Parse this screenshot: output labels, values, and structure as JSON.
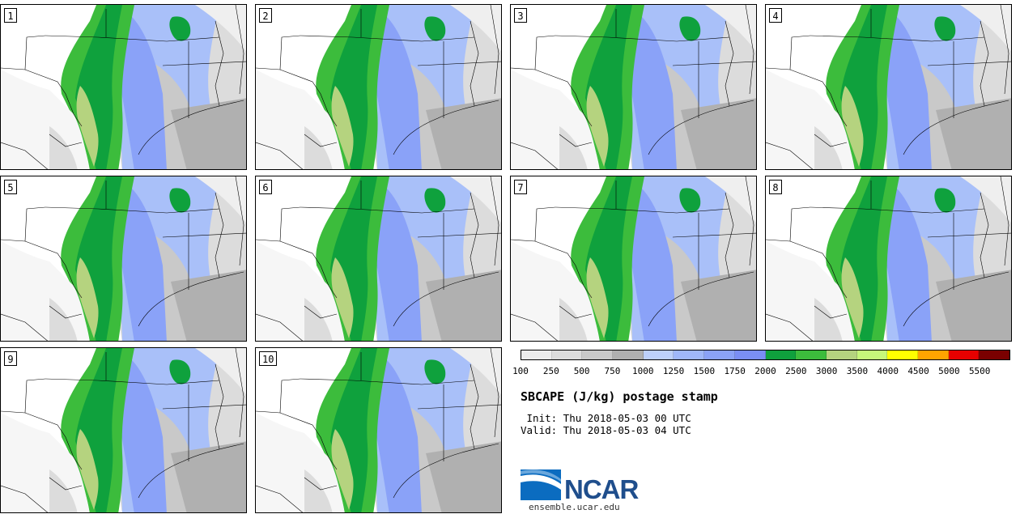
{
  "panels": [
    {
      "label": "1"
    },
    {
      "label": "2"
    },
    {
      "label": "3"
    },
    {
      "label": "4"
    },
    {
      "label": "5"
    },
    {
      "label": "6"
    },
    {
      "label": "7"
    },
    {
      "label": "8"
    },
    {
      "label": "9"
    },
    {
      "label": "10"
    }
  ],
  "colorbar": {
    "colors": [
      "#ececec",
      "#dcdcdc",
      "#c9c9c9",
      "#b0b0b0",
      "#bdd0fb",
      "#9fb7fa",
      "#8aa2f8",
      "#7a8ef5",
      "#0fa13d",
      "#3cbc3c",
      "#b5d37f",
      "#c6f77a",
      "#ffff00",
      "#ffa400",
      "#e70000",
      "#7a0000"
    ],
    "ticks": [
      "100",
      "250",
      "500",
      "750",
      "1000",
      "1250",
      "1500",
      "1750",
      "2000",
      "2500",
      "3000",
      "3500",
      "4000",
      "4500",
      "5000",
      "5500"
    ]
  },
  "title": "SBCAPE (J/kg) postage stamp",
  "init": " Init: Thu 2018-05-03 00 UTC",
  "valid": "Valid: Thu 2018-05-03 04 UTC",
  "logo": {
    "text": "NCAR",
    "url": "ensemble.ucar.edu"
  }
}
